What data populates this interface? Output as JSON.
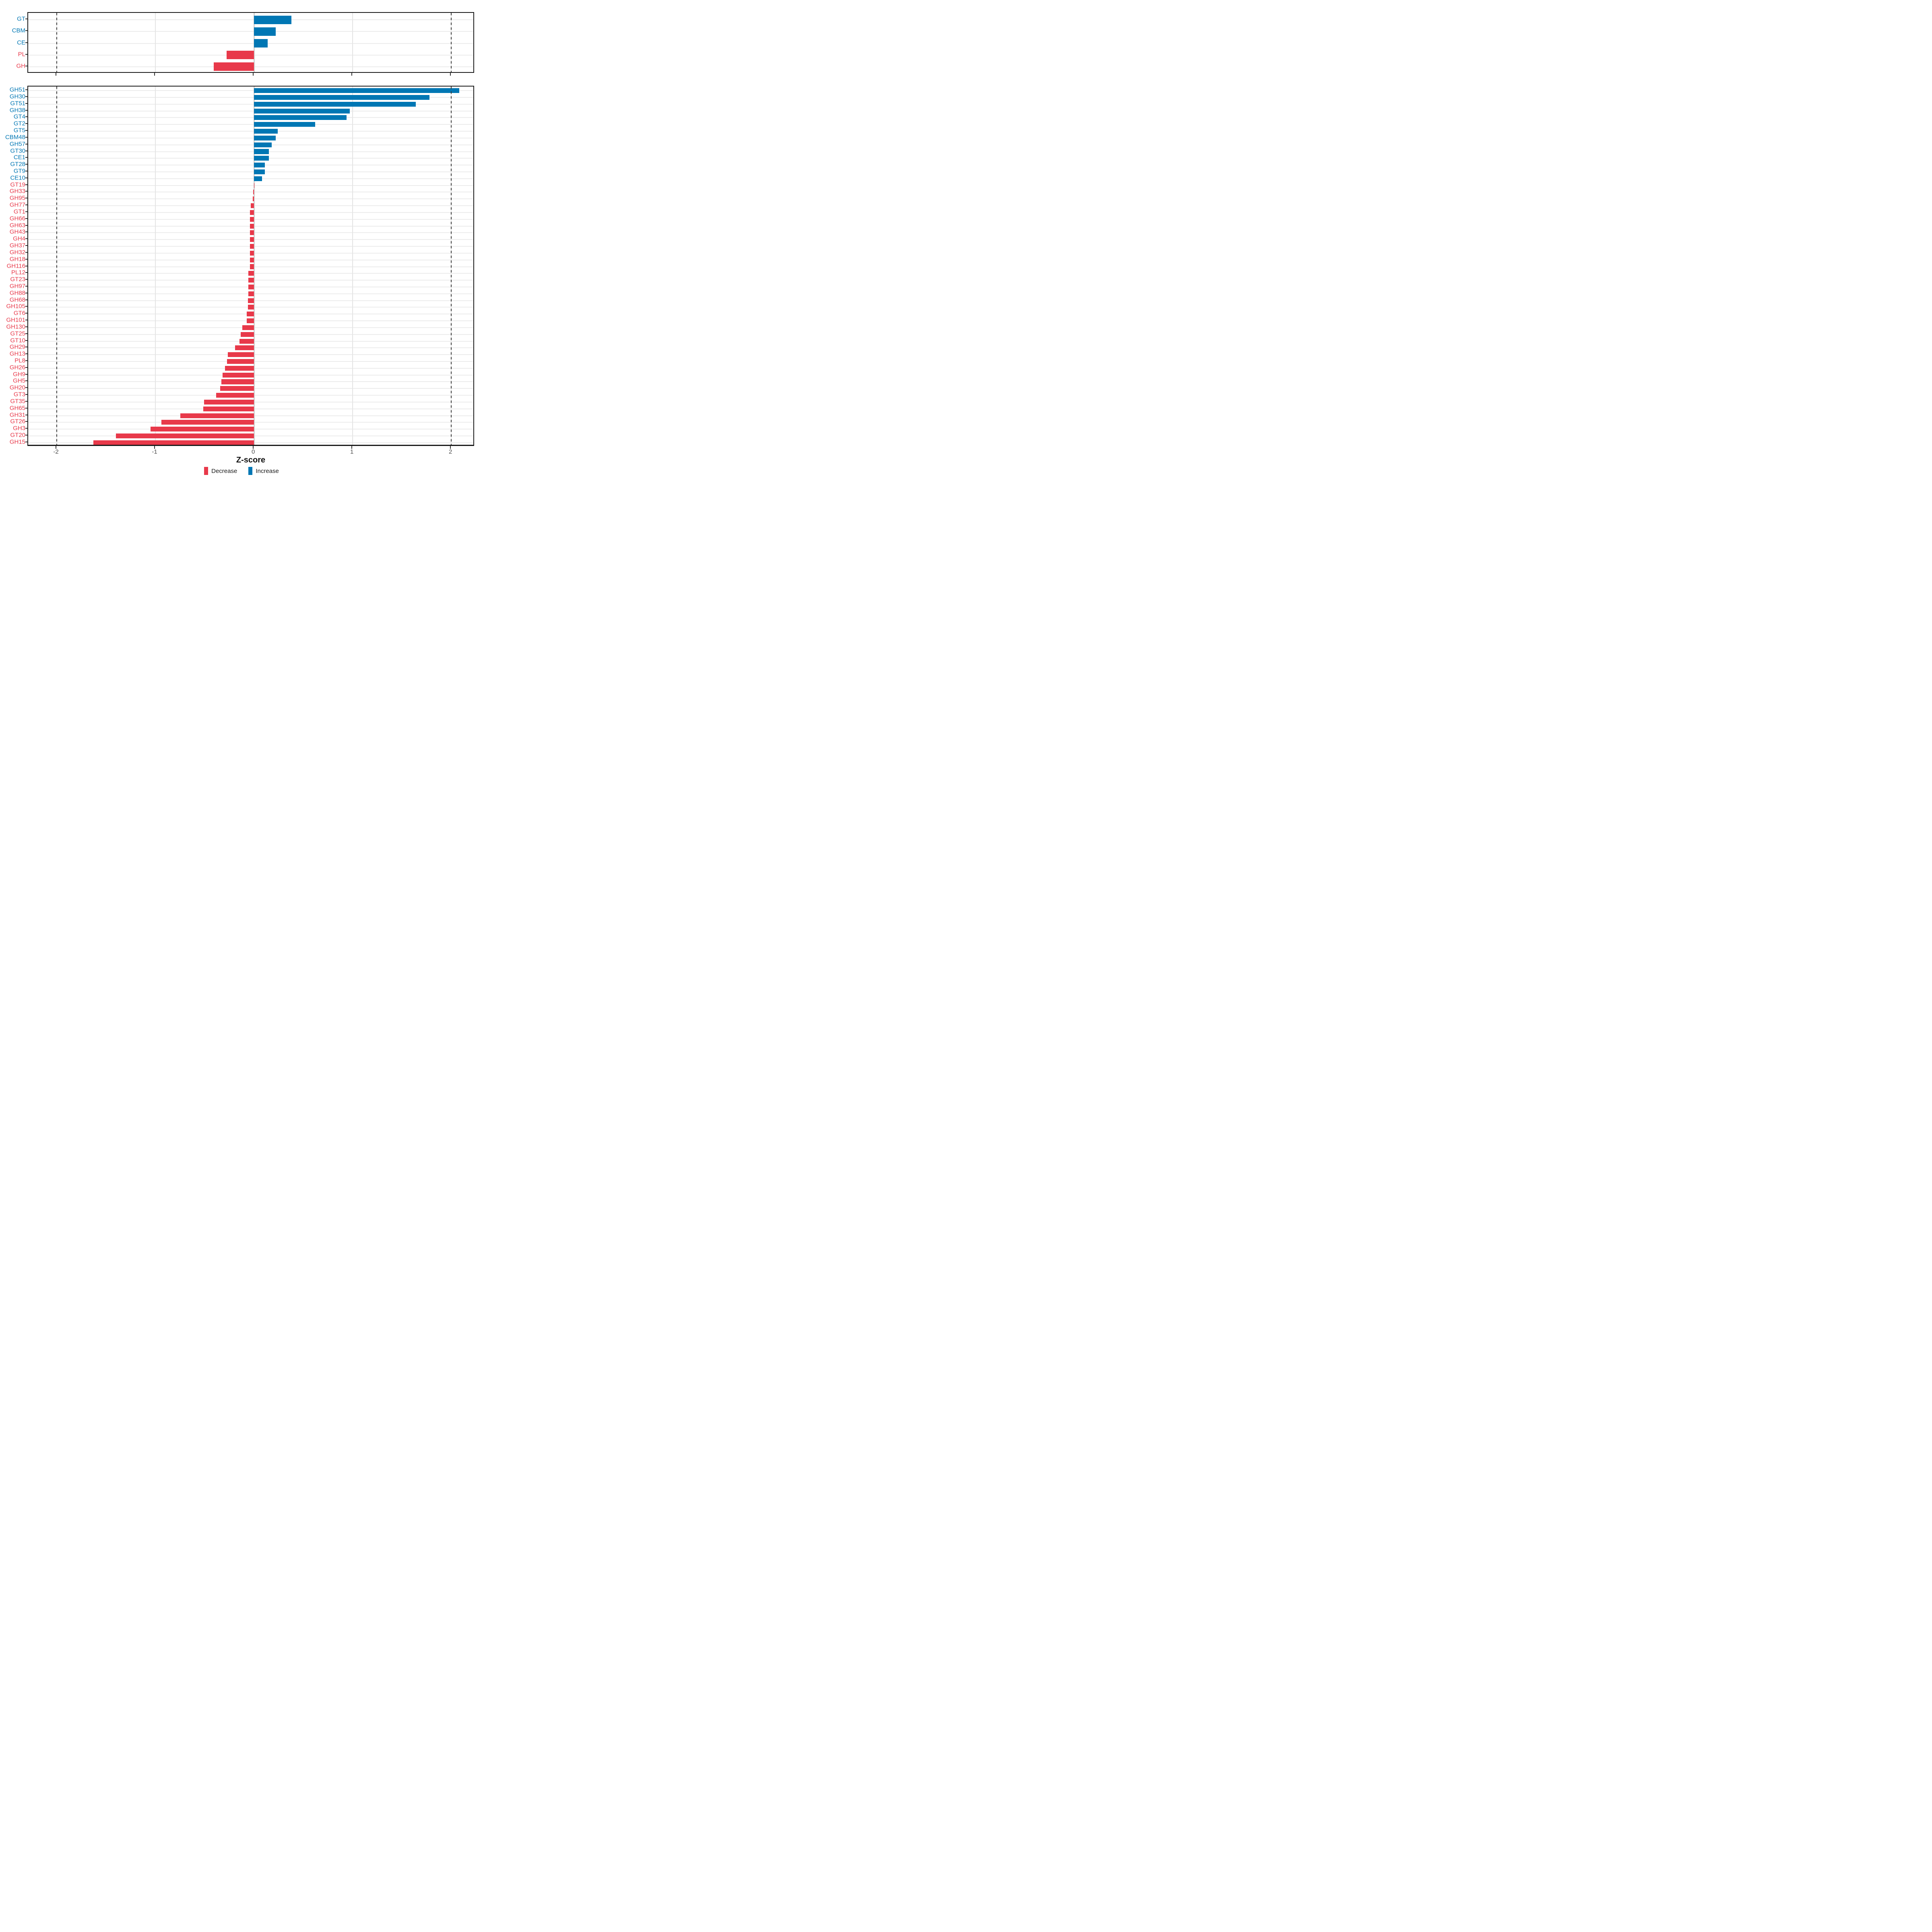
{
  "axis": {
    "label": "Z-score",
    "tick_labels": [
      "-2",
      "-1",
      "0",
      "1",
      "2"
    ],
    "tick_values": [
      -2,
      -1,
      0,
      1,
      2
    ]
  },
  "colors": {
    "increase": "#0077b4",
    "decrease": "#e8394a",
    "tick_label": "#4d4d4d",
    "panel_border": "#1a1a1a"
  },
  "legend": {
    "items": [
      {
        "label": "Decrease",
        "color": "#e8394a"
      },
      {
        "label": "Increase",
        "color": "#0077b4"
      }
    ]
  },
  "reference_lines": [
    -2,
    2
  ],
  "chart_data": [
    {
      "type": "bar",
      "orientation": "horizontal",
      "panel": "top",
      "title": "",
      "xlabel": "Z-score",
      "xlim": [
        -2.29,
        2.24
      ],
      "grid": true,
      "categories": [
        "GT",
        "CBM",
        "CE",
        "PL",
        "GH"
      ],
      "values": [
        0.38,
        0.22,
        0.14,
        -0.28,
        -0.41
      ]
    },
    {
      "type": "bar",
      "orientation": "horizontal",
      "panel": "bottom",
      "title": "",
      "xlabel": "Z-score",
      "xlim": [
        -2.29,
        2.24
      ],
      "grid": true,
      "categories": [
        "GH51",
        "GH30",
        "GT51",
        "GH38",
        "GT4",
        "GT2",
        "GT5",
        "CBM48",
        "GH57",
        "GT30",
        "CE1",
        "GT28",
        "GT9",
        "CE10",
        "GT19",
        "GH33",
        "GH95",
        "GH77",
        "GT1",
        "GH66",
        "GH63",
        "GH43",
        "GH4",
        "GH37",
        "GH32",
        "GH18",
        "GH116",
        "PL12",
        "GT23",
        "GH97",
        "GH88",
        "GH68",
        "GH105",
        "GT6",
        "GH101",
        "GH130",
        "GT25",
        "GT10",
        "GH29",
        "GH13",
        "PL8",
        "GH26",
        "GH9",
        "GH5",
        "GH20",
        "GT3",
        "GT35",
        "GH65",
        "GH31",
        "GT26",
        "GH3",
        "GT20",
        "GH15"
      ],
      "values": [
        2.08,
        1.78,
        1.64,
        0.97,
        0.94,
        0.62,
        0.24,
        0.22,
        0.18,
        0.15,
        0.15,
        0.11,
        0.11,
        0.08,
        -0.002,
        -0.01,
        -0.012,
        -0.034,
        -0.042,
        -0.042,
        -0.042,
        -0.043,
        -0.042,
        -0.042,
        -0.042,
        -0.042,
        -0.042,
        -0.058,
        -0.058,
        -0.058,
        -0.058,
        -0.06,
        -0.06,
        -0.074,
        -0.074,
        -0.12,
        -0.134,
        -0.147,
        -0.193,
        -0.264,
        -0.274,
        -0.296,
        -0.32,
        -0.33,
        -0.343,
        -0.383,
        -0.508,
        -0.515,
        -0.746,
        -0.94,
        -1.05,
        -1.4,
        -1.63
      ]
    }
  ]
}
